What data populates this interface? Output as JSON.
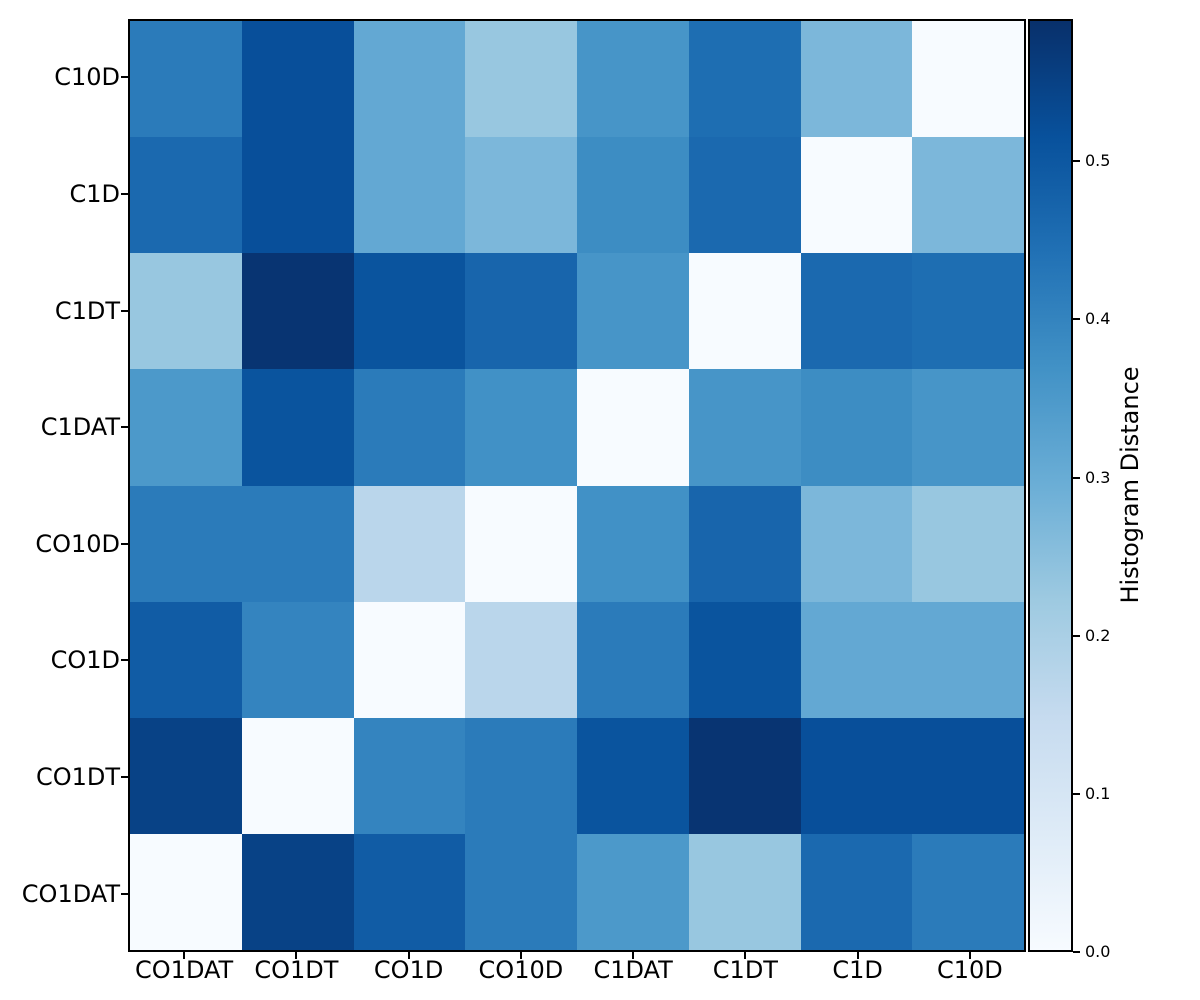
{
  "chart_data": {
    "type": "heatmap",
    "title": "",
    "xlabel": "",
    "ylabel": "",
    "grid": false,
    "x_categories": [
      "CO1DAT",
      "CO1DT",
      "CO1D",
      "CO10D",
      "C1DAT",
      "C1DT",
      "C1D",
      "C10D"
    ],
    "y_categories": [
      "C10D",
      "C1D",
      "C1DT",
      "C1DAT",
      "CO10D",
      "CO1D",
      "CO1DT",
      "CO1DAT"
    ],
    "values": [
      [
        0.42,
        0.52,
        0.31,
        0.23,
        0.36,
        0.45,
        0.27,
        0.0
      ],
      [
        0.46,
        0.52,
        0.31,
        0.27,
        0.38,
        0.46,
        0.0,
        0.27
      ],
      [
        0.23,
        0.58,
        0.51,
        0.47,
        0.36,
        0.0,
        0.46,
        0.45
      ],
      [
        0.35,
        0.51,
        0.42,
        0.37,
        0.0,
        0.36,
        0.38,
        0.36
      ],
      [
        0.42,
        0.42,
        0.17,
        0.0,
        0.37,
        0.47,
        0.27,
        0.23
      ],
      [
        0.49,
        0.4,
        0.0,
        0.17,
        0.42,
        0.51,
        0.31,
        0.31
      ],
      [
        0.55,
        0.0,
        0.4,
        0.42,
        0.51,
        0.58,
        0.52,
        0.52
      ],
      [
        0.0,
        0.55,
        0.49,
        0.42,
        0.35,
        0.23,
        0.46,
        0.42
      ]
    ],
    "colorbar": {
      "label": "Histogram Distance",
      "ticks": [
        0.0,
        0.1,
        0.2,
        0.3,
        0.4,
        0.5
      ],
      "vmin": 0.0,
      "vmax": 0.59
    },
    "colormap": {
      "name": "Blues",
      "anchors": [
        "#f7fbff",
        "#deebf7",
        "#c6dbef",
        "#9ecae1",
        "#6baed6",
        "#4292c6",
        "#2171b5",
        "#08519c",
        "#08306b"
      ]
    }
  }
}
